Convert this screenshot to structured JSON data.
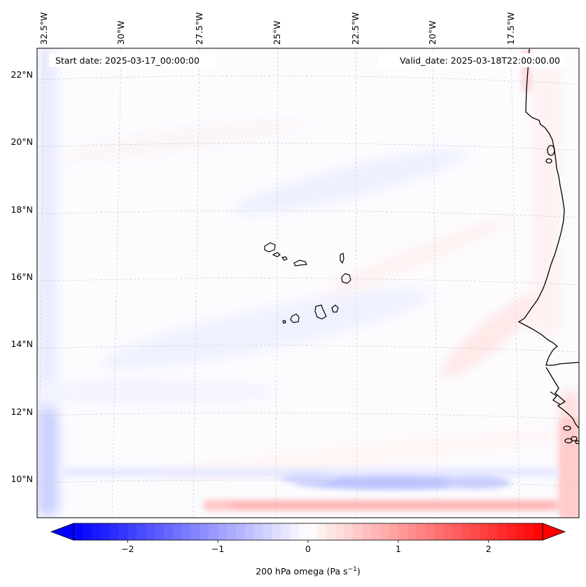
{
  "map": {
    "start_date_label": "Start date: 2025-03-17_00:00:00",
    "valid_date_label": "Valid_date: 2025-03-18T22:00:00.00",
    "lon_labels": [
      "32.5°W",
      "30°W",
      "27.5°W",
      "25°W",
      "22.5°W",
      "20°W",
      "17.5°W"
    ],
    "lat_labels": [
      "22°N",
      "20°N",
      "18°N",
      "16°N",
      "14°N",
      "12°N",
      "10°N"
    ],
    "features": [
      "Cabo Verde islands",
      "West African coastline"
    ]
  },
  "colorbar": {
    "label": "200 hPa omega (Pa s",
    "label_superscript": "−1",
    "label_close": ")",
    "tick_labels": [
      "−2",
      "−1",
      "0",
      "1",
      "2"
    ],
    "tick_values": [
      -2,
      -1,
      0,
      1,
      2
    ],
    "range": [
      -2.6,
      2.6
    ],
    "colormap": "bwr",
    "extend": "both",
    "colors": {
      "low": "#0000ff",
      "mid": "#ffffff",
      "high": "#ff0000"
    }
  }
}
